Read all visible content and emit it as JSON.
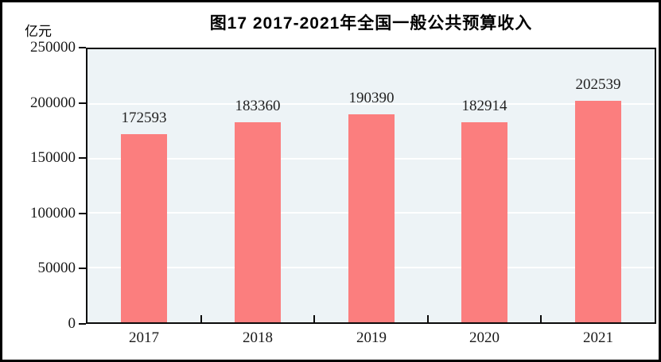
{
  "chart_data": {
    "type": "bar",
    "title": "图17  2017-2021年全国一般公共预算收入",
    "unit_label": "亿元",
    "categories": [
      "2017",
      "2018",
      "2019",
      "2020",
      "2021"
    ],
    "values": [
      172593,
      183360,
      190390,
      182914,
      202539
    ],
    "value_labels": [
      "172593",
      "183360",
      "190390",
      "182914",
      "202539"
    ],
    "ytick_labels": [
      "250000",
      "200000",
      "150000",
      "100000",
      "50000",
      "0"
    ],
    "ylim": [
      0,
      250000
    ],
    "ytick_step": 50000,
    "xlabel": "",
    "ylabel": "亿元",
    "grid": true,
    "legend_position": "none",
    "colors": {
      "bar_fill": "#fb7e7e",
      "plot_background": "#edf3f6",
      "gridline": "#ffffff",
      "axis_line": "#0a0a0a",
      "text": "#1a1a1a",
      "frame_border": "#000000",
      "page_background": "#ffffff"
    }
  }
}
